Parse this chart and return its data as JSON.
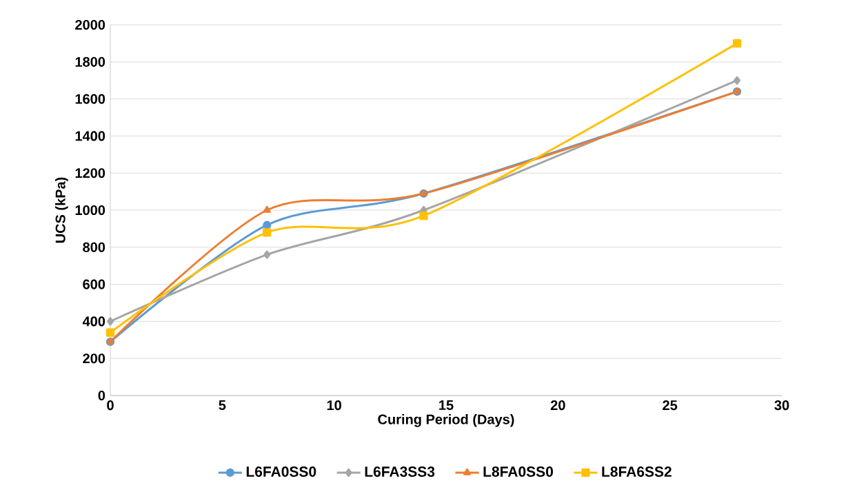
{
  "chart_data": {
    "type": "line",
    "xlabel": "Curing Period (Days)",
    "ylabel": "UCS (kPa)",
    "xlim": [
      0,
      30
    ],
    "xticks": [
      0,
      5,
      10,
      15,
      20,
      25,
      30
    ],
    "ylim": [
      0,
      2000
    ],
    "yticks": [
      0,
      200,
      400,
      600,
      800,
      1000,
      1200,
      1400,
      1600,
      1800,
      2000
    ],
    "grid": "y",
    "legend": "bottom",
    "x": [
      0,
      7,
      14,
      28
    ],
    "series": [
      {
        "name": "L6FA0SS0",
        "color": "#5b9bd5",
        "marker": "circle",
        "values": [
          290,
          920,
          1090,
          1640
        ]
      },
      {
        "name": "L6FA3SS3",
        "color": "#a5a5a5",
        "marker": "diamond",
        "values": [
          400,
          760,
          1000,
          1700
        ]
      },
      {
        "name": "L8FA0SS0",
        "color": "#ed7d31",
        "marker": "triangle",
        "values": [
          290,
          1000,
          1090,
          1640
        ]
      },
      {
        "name": "L8FA6SS2",
        "color": "#ffc000",
        "marker": "square",
        "values": [
          340,
          880,
          970,
          1900
        ]
      }
    ]
  }
}
